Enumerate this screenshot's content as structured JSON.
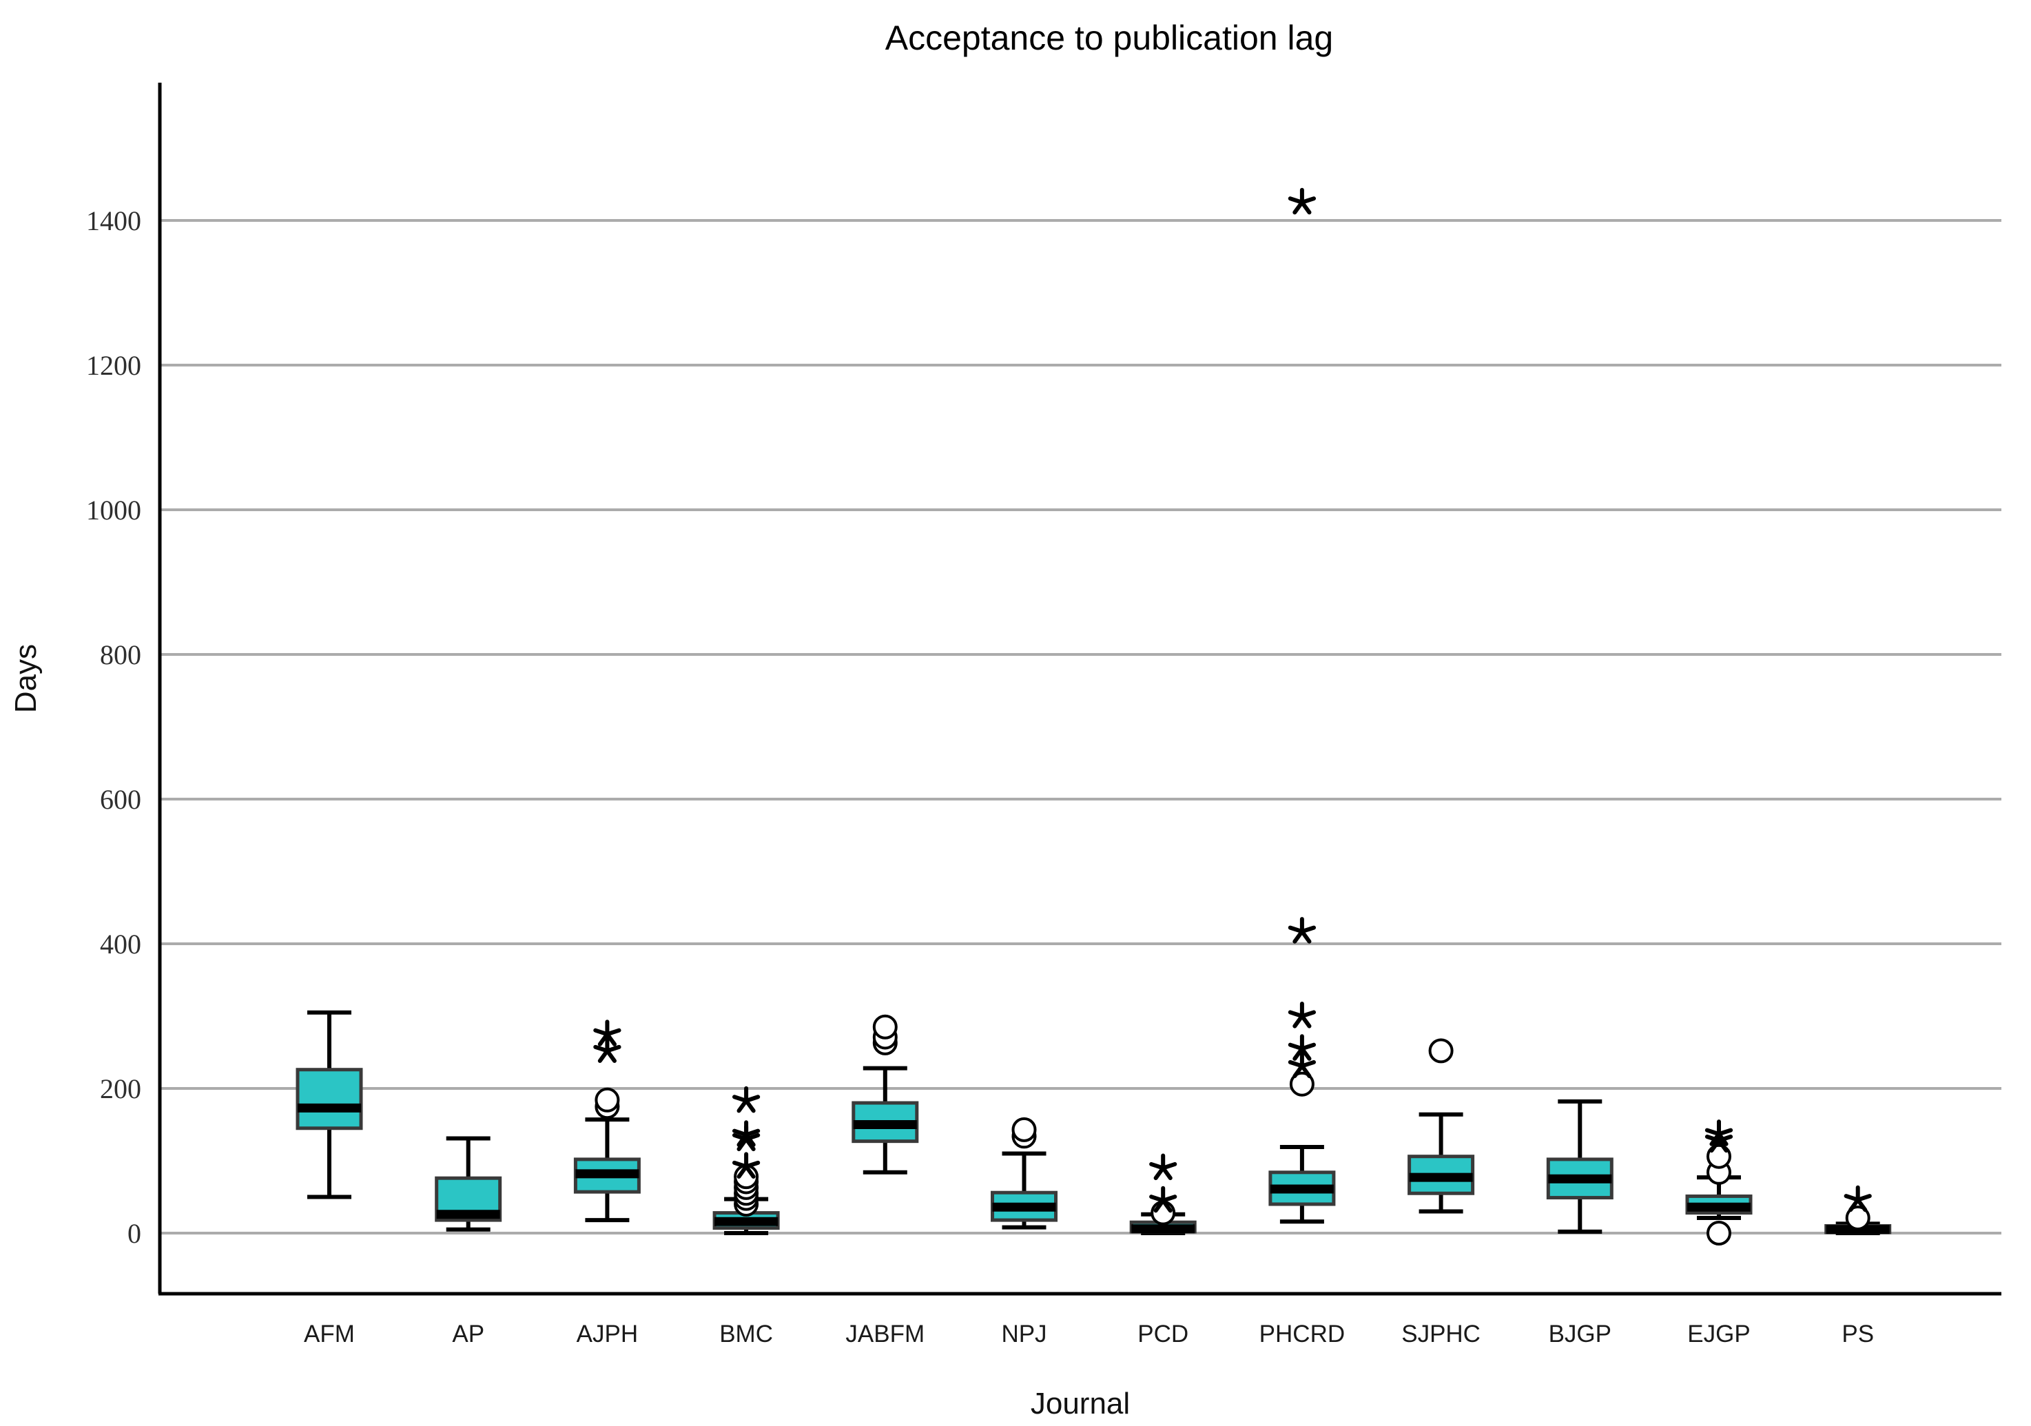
{
  "chart_data": {
    "type": "boxplot",
    "title": "Acceptance to publication lag",
    "xlabel": "Journal",
    "ylabel": "Days",
    "y_axis": {
      "min": 0,
      "max": 1400,
      "tick_step": 200,
      "ticks": [
        0,
        200,
        400,
        600,
        800,
        1000,
        1200,
        1400
      ],
      "grid": true
    },
    "legend_position": "none",
    "categories": [
      "AFM",
      "AP",
      "AJPH",
      "BMC",
      "JABFM",
      "NPJ",
      "PCD",
      "PHCRD",
      "SJPHC",
      "BJGP",
      "EJGP",
      "PS"
    ],
    "boxes": [
      {
        "journal": "AFM",
        "whisker_low": 50,
        "q1": 145,
        "median": 173,
        "q3": 226,
        "whisker_high": 305,
        "outliers": [],
        "extremes": []
      },
      {
        "journal": "AP",
        "whisker_low": 5,
        "q1": 18,
        "median": 26,
        "q3": 76,
        "whisker_high": 131,
        "outliers": [],
        "extremes": []
      },
      {
        "journal": "AJPH",
        "whisker_low": 18,
        "q1": 57,
        "median": 82,
        "q3": 102,
        "whisker_high": 157,
        "outliers": [
          175,
          184
        ],
        "extremes": [
          252,
          275
        ]
      },
      {
        "journal": "BMC",
        "whisker_low": 0,
        "q1": 7,
        "median": 16,
        "q3": 28,
        "whisker_high": 47,
        "outliers": [
          40,
          48,
          55,
          63,
          71,
          78
        ],
        "extremes": [
          92,
          130,
          136,
          183
        ]
      },
      {
        "journal": "JABFM",
        "whisker_low": 84,
        "q1": 127,
        "median": 150,
        "q3": 180,
        "whisker_high": 228,
        "outliers": [
          263,
          271,
          285
        ],
        "extremes": []
      },
      {
        "journal": "NPJ",
        "whisker_low": 8,
        "q1": 18,
        "median": 36,
        "q3": 56,
        "whisker_high": 110,
        "outliers": [
          134,
          143
        ],
        "extremes": []
      },
      {
        "journal": "PCD",
        "whisker_low": 0,
        "q1": 2,
        "median": 6,
        "q3": 15,
        "whisker_high": 26,
        "outliers": [
          28
        ],
        "extremes": [
          45,
          90
        ]
      },
      {
        "journal": "PHCRD",
        "whisker_low": 16,
        "q1": 40,
        "median": 61,
        "q3": 84,
        "whisker_high": 119,
        "outliers": [
          206
        ],
        "extremes": [
          231,
          255,
          300,
          417,
          1425
        ]
      },
      {
        "journal": "SJPHC",
        "whisker_low": 30,
        "q1": 55,
        "median": 77,
        "q3": 106,
        "whisker_high": 164,
        "outliers": [
          252
        ],
        "extremes": []
      },
      {
        "journal": "BJGP",
        "whisker_low": 2,
        "q1": 49,
        "median": 75,
        "q3": 102,
        "whisker_high": 182,
        "outliers": [],
        "extremes": []
      },
      {
        "journal": "EJGP",
        "whisker_low": 21,
        "q1": 28,
        "median": 36,
        "q3": 51,
        "whisker_high": 77,
        "outliers": [
          0,
          84,
          106
        ],
        "extremes": [
          128,
          137
        ]
      },
      {
        "journal": "PS",
        "whisker_low": 0,
        "q1": 1,
        "median": 5,
        "q3": 10,
        "whisker_high": 13,
        "outliers": [
          21
        ],
        "extremes": [
          46
        ]
      }
    ],
    "style": {
      "box_fill": "#2bc5c5",
      "box_border": "#3a3a3a",
      "median_color": "#000000",
      "whisker_color": "#000000",
      "grid_color": "#ababab",
      "axis_color": "#000000",
      "background": "#ffffff",
      "outlier_marker": "open-circle",
      "extreme_marker": "asterisk"
    }
  }
}
